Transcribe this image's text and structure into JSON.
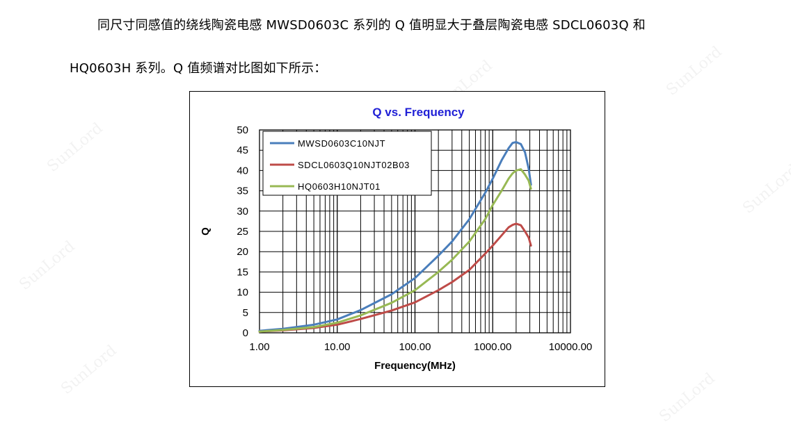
{
  "text": {
    "line1": "同尺寸同感值的绕线陶瓷电感  MWSD0603C  系列的  Q  值明显大于叠层陶瓷电感  SDCL0603Q  和",
    "line2": "HQ0603H 系列。Q 值频谱对比图如下所示："
  },
  "watermark": "SunLord",
  "chart_data": {
    "type": "line",
    "title": "Q vs. Frequency",
    "xlabel": "Frequency(MHz)",
    "ylabel": "Q",
    "xscale": "log",
    "xlim": [
      1,
      10000
    ],
    "ylim": [
      0,
      50
    ],
    "yticks": [
      0,
      5,
      10,
      15,
      20,
      25,
      30,
      35,
      40,
      45,
      50
    ],
    "xticks": [
      1,
      10,
      100,
      1000,
      10000
    ],
    "xtick_labels": [
      "1.00",
      "10.00",
      "100.00",
      "1000.00",
      "10000.00"
    ],
    "legend_position": "top-left",
    "title_color": "#1f1fd6",
    "series": [
      {
        "name": "MWSD0603C10NJT",
        "color": "#4a7ebb",
        "x": [
          1,
          2,
          5,
          10,
          20,
          50,
          100,
          200,
          300,
          500,
          800,
          1000,
          1300,
          1600,
          1800,
          2000,
          2300,
          2600,
          2900,
          3100
        ],
        "y": [
          0.5,
          1.0,
          2.0,
          3.3,
          5.6,
          9.5,
          13.5,
          19.0,
          22.5,
          28.0,
          34.5,
          38.0,
          42.5,
          45.5,
          46.8,
          47.0,
          46.5,
          44.5,
          40.5,
          36.5
        ]
      },
      {
        "name": "SDCL0603Q10NJT02B03",
        "color": "#be4b48",
        "x": [
          1,
          2,
          5,
          10,
          20,
          50,
          100,
          200,
          300,
          500,
          800,
          1000,
          1300,
          1600,
          1800,
          2000,
          2300,
          2600,
          2900,
          3100
        ],
        "y": [
          0.3,
          0.6,
          1.2,
          2.0,
          3.4,
          5.5,
          7.5,
          10.5,
          12.5,
          15.5,
          19.5,
          21.5,
          24.0,
          26.0,
          26.6,
          26.9,
          26.5,
          25.0,
          23.5,
          21.5
        ]
      },
      {
        "name": "HQ0603H10NJT01",
        "color": "#98b954",
        "x": [
          1,
          2,
          5,
          10,
          20,
          50,
          100,
          200,
          300,
          500,
          800,
          1000,
          1300,
          1600,
          1800,
          2000,
          2300,
          2600,
          2900,
          3100
        ],
        "y": [
          0.3,
          0.7,
          1.4,
          2.5,
          4.3,
          7.4,
          10.5,
          15.0,
          18.0,
          22.5,
          28.0,
          31.5,
          35.0,
          38.0,
          39.3,
          40.0,
          40.3,
          39.0,
          37.5,
          35.5
        ]
      }
    ]
  }
}
